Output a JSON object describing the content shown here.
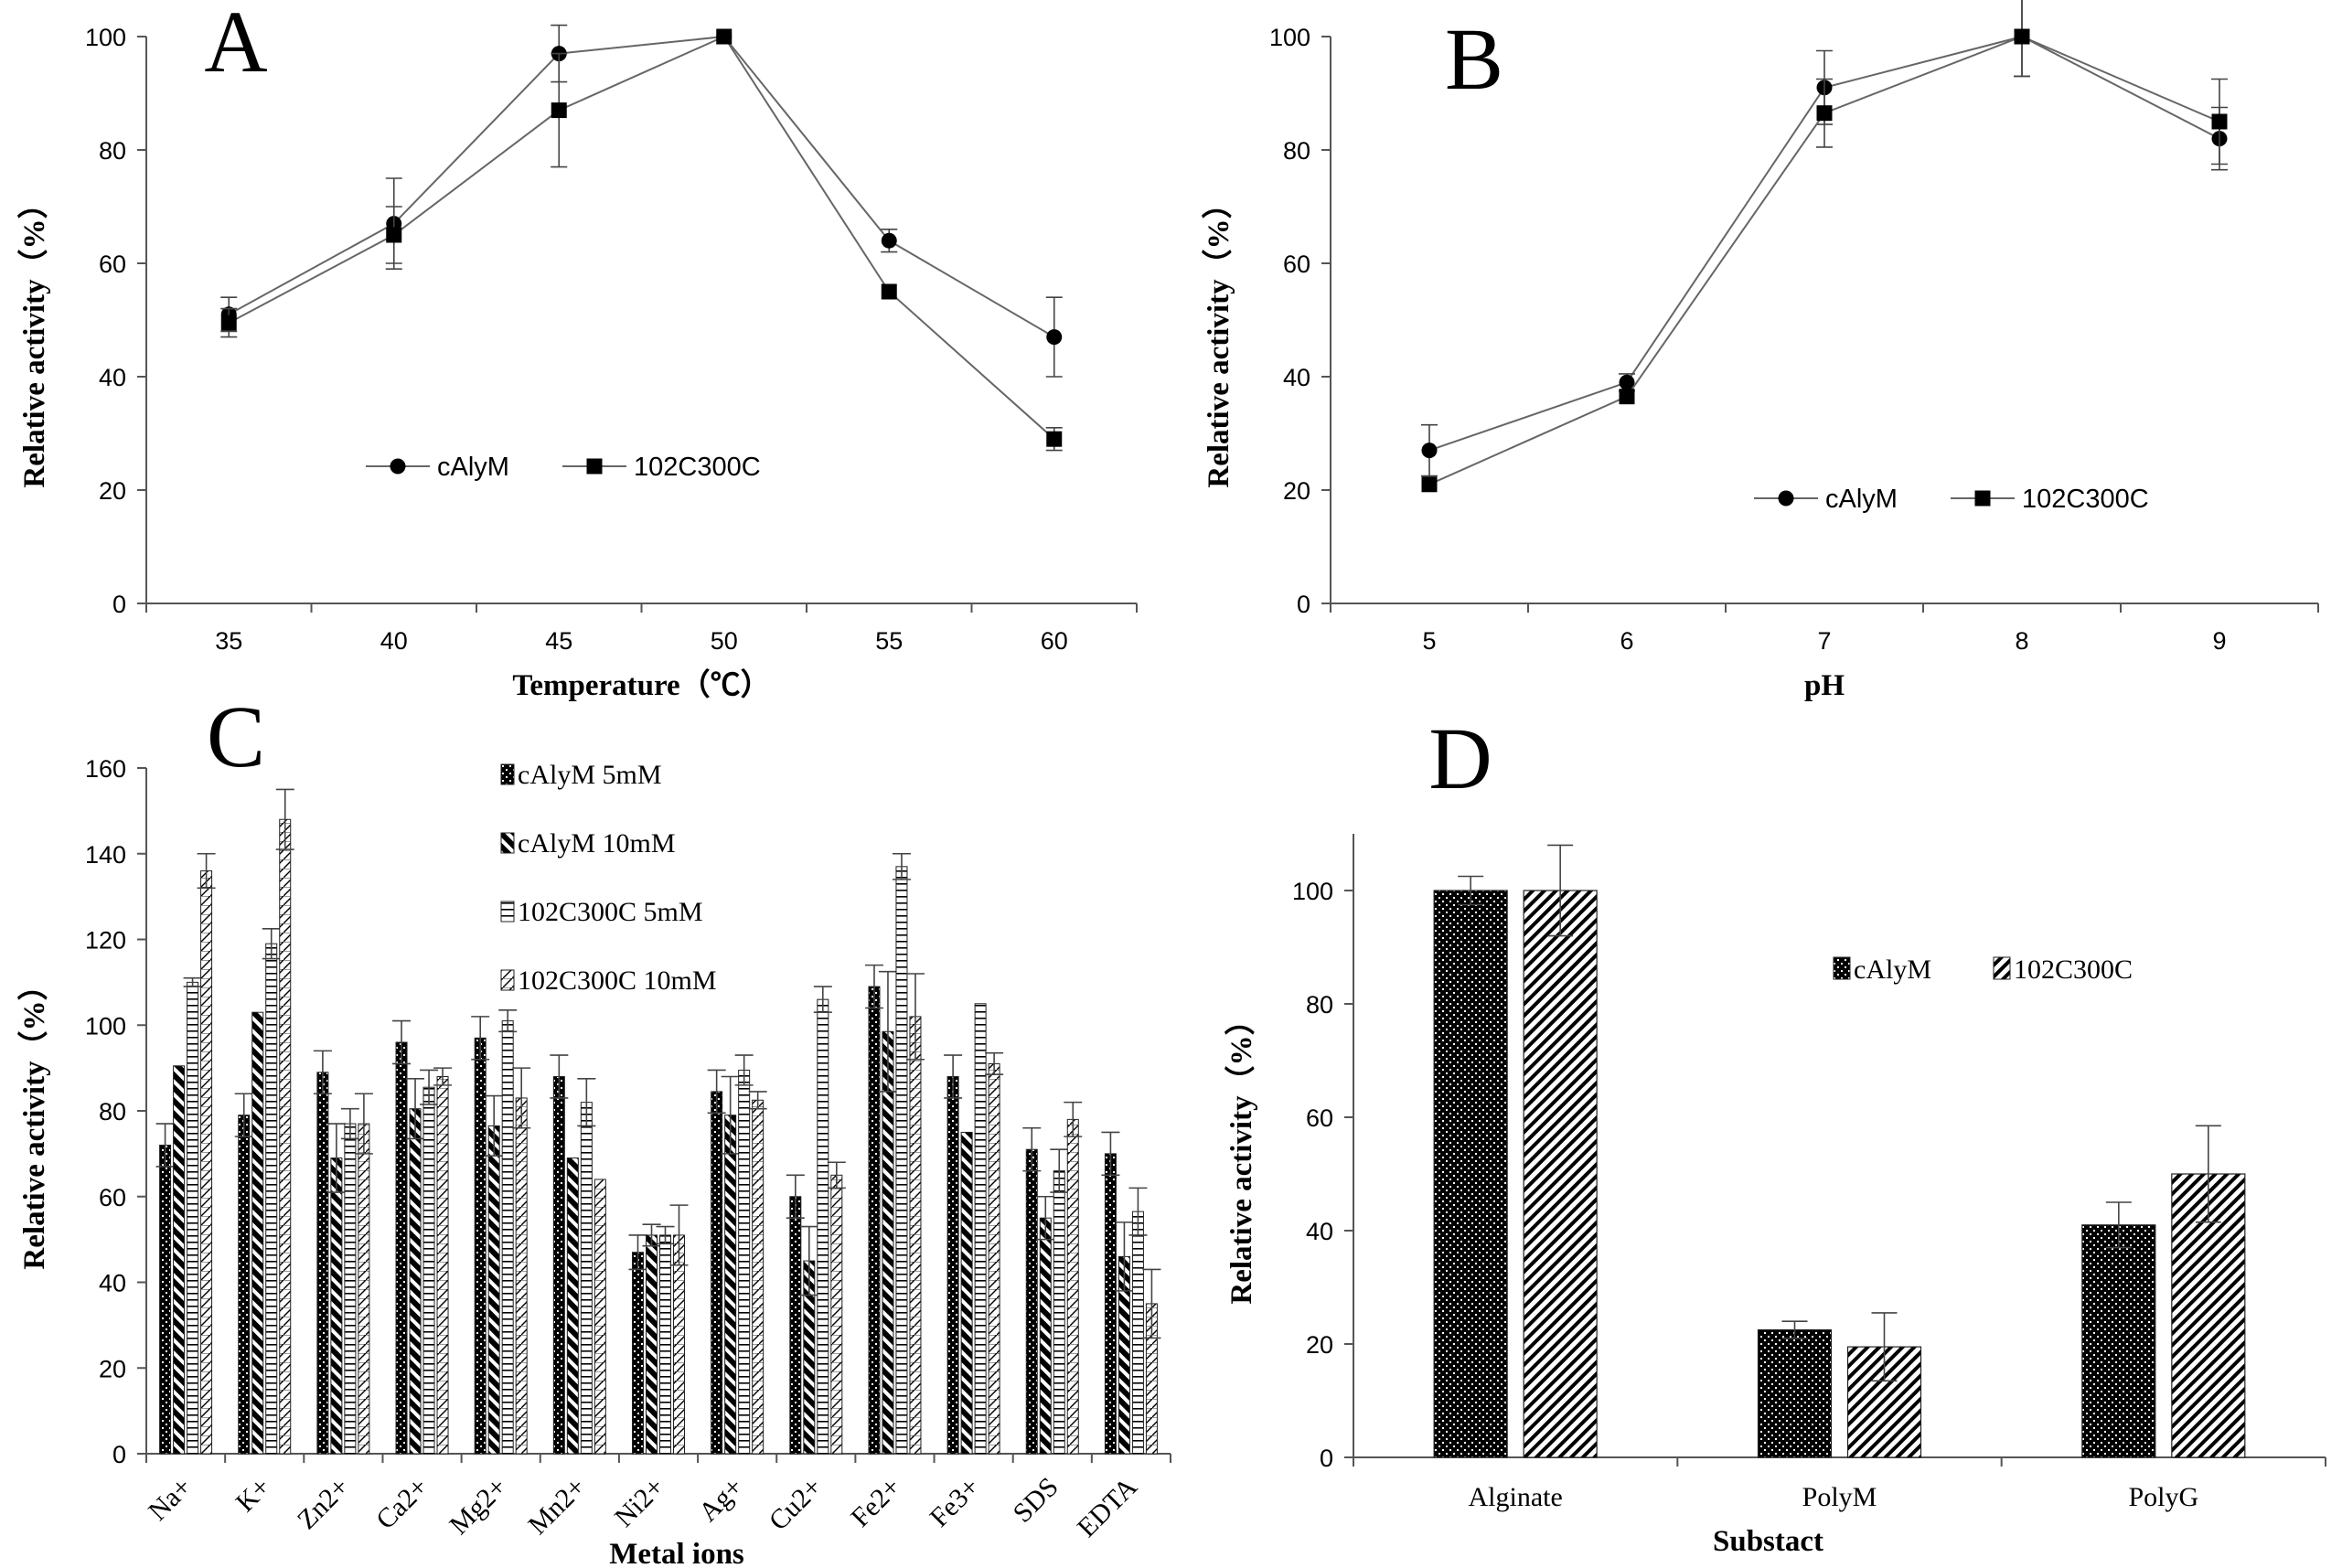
{
  "chart_data": [
    {
      "panel": "A",
      "type": "line",
      "title": "",
      "xlabel": "Temperature（℃）",
      "ylabel": "Relative activity（%）",
      "categories": [
        "35",
        "40",
        "45",
        "50",
        "55",
        "60"
      ],
      "ylim": [
        0,
        100
      ],
      "yticks": [
        "0",
        "20",
        "40",
        "60",
        "80",
        "100"
      ],
      "series": [
        {
          "name": "cAlyM",
          "marker": "circle",
          "values": [
            51,
            67,
            97,
            100,
            64,
            47
          ],
          "errors": [
            3,
            8,
            5,
            0,
            2,
            7
          ]
        },
        {
          "name": "102C300C",
          "marker": "square",
          "values": [
            49.5,
            65,
            87,
            100,
            55,
            29
          ],
          "errors": [
            2.5,
            5,
            10,
            0,
            0,
            2
          ]
        }
      ],
      "legend_position": "middle-left"
    },
    {
      "panel": "B",
      "type": "line",
      "title": "",
      "xlabel": "pH",
      "ylabel": "Relative activity（%）",
      "categories": [
        "5",
        "6",
        "7",
        "8",
        "9"
      ],
      "ylim": [
        0,
        100
      ],
      "yticks": [
        "0",
        "20",
        "40",
        "60",
        "80",
        "100"
      ],
      "series": [
        {
          "name": "cAlyM",
          "marker": "circle",
          "values": [
            27,
            39,
            91,
            100,
            82
          ],
          "errors": [
            4.5,
            1.5,
            6.5,
            7,
            5.5
          ]
        },
        {
          "name": "102C300C",
          "marker": "square",
          "values": [
            21,
            36.5,
            86.5,
            100,
            85
          ],
          "errors": [
            0,
            0,
            6,
            7,
            7.5
          ]
        }
      ],
      "legend_position": "lower-right"
    },
    {
      "panel": "C",
      "type": "bar",
      "title": "",
      "xlabel": "Metal ions",
      "ylabel": "Relative activity（%）",
      "categories": [
        "Na+",
        "K+",
        "Zn2+",
        "Ca2+",
        "Mg2+",
        "Mn2+",
        "Ni2+",
        "Ag+",
        "Cu2+",
        "Fe2+",
        "Fe3+",
        "SDS",
        "EDTA"
      ],
      "ylim": [
        0,
        160
      ],
      "yticks": [
        "0",
        "20",
        "40",
        "60",
        "80",
        "100",
        "120",
        "140",
        "160"
      ],
      "series": [
        {
          "name": "cAlyM 5mM",
          "pattern": "dense-dots",
          "values": [
            72,
            79,
            89,
            96,
            97,
            88,
            47,
            84.5,
            60,
            109,
            88,
            71,
            70
          ],
          "errors": [
            5,
            5,
            5,
            5,
            5,
            5,
            4,
            5,
            5,
            5,
            5,
            5,
            5
          ]
        },
        {
          "name": "cAlyM 10mM",
          "pattern": "back-diagonal",
          "values": [
            90.5,
            103,
            69,
            80.5,
            76.5,
            69,
            51,
            79,
            45,
            98.5,
            75,
            55,
            46
          ],
          "errors": [
            0,
            0,
            8,
            7,
            7,
            0,
            2.5,
            9,
            8,
            14,
            0,
            5,
            8
          ]
        },
        {
          "name": "102C300C 5mM",
          "pattern": "horizontal",
          "values": [
            110,
            119,
            77,
            85.5,
            101,
            82,
            51,
            89.5,
            106,
            137,
            105,
            66,
            56.5
          ],
          "errors": [
            1,
            3.5,
            3.5,
            4,
            2.5,
            5.5,
            2,
            3.5,
            3,
            3,
            0,
            5,
            5.5
          ]
        },
        {
          "name": "102C300C 10mM",
          "pattern": "hatched-block",
          "values": [
            136,
            148,
            77,
            88,
            83,
            64,
            51,
            82.5,
            65,
            102,
            91,
            78,
            35
          ],
          "errors": [
            4,
            7,
            7,
            2,
            7,
            0,
            7,
            2,
            3,
            10,
            2.5,
            4,
            8
          ]
        }
      ],
      "legend_position": "top-center"
    },
    {
      "panel": "D",
      "type": "bar",
      "title": "",
      "xlabel": "Substact",
      "ylabel": "Relative activity（%）",
      "categories": [
        "Alginate",
        "PolyM",
        "PolyG"
      ],
      "ylim": [
        0,
        110
      ],
      "yticks": [
        "0",
        "20",
        "40",
        "60",
        "80",
        "100"
      ],
      "series": [
        {
          "name": "cAlyM",
          "pattern": "dense-dots",
          "values": [
            100,
            22.5,
            41
          ],
          "errors": [
            2.5,
            1.5,
            4
          ]
        },
        {
          "name": "102C300C",
          "pattern": "diagonal",
          "values": [
            100,
            19.5,
            50
          ],
          "errors": [
            8,
            6,
            8.5
          ]
        }
      ],
      "legend_position": "middle-right"
    }
  ]
}
